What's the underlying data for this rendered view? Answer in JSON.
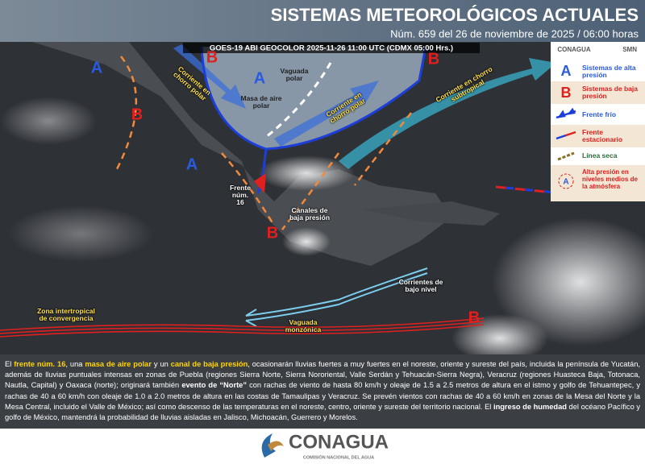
{
  "header": {
    "title": "SISTEMAS METEOROLÓGICOS ACTUALES",
    "subtitle": "Núm. 659 del 26 de noviembre de 2025 / 06:00 horas"
  },
  "map": {
    "caption": "GOES-19 ABI GEOCOLOR 2025-11-26 11:00 UTC (CDMX  05:00 Hrs.)",
    "labels": [
      "A",
      "B",
      "A",
      "Vaguada polar",
      "Masa de aire polar",
      "Corriente en chorro polar",
      "Corriente en chorro polar",
      "B",
      "Corriente en chorro subtropical",
      "B",
      "A",
      "Frente núm. 16",
      "Canales de baja presión",
      "B",
      "Corrientes de bajo nivel",
      "Zona intertropical de convergencia",
      "Vaguada monzónica",
      "B"
    ]
  },
  "legend": {
    "logos": [
      "CONAGUA",
      "SMN"
    ],
    "items": [
      "Sistemas de alta presión",
      "Sistemas de baja presión",
      "Frente frío",
      "Frente estacionario",
      "Línea seca",
      "Alta presión en niveles medios de la atmósfera"
    ]
  },
  "description": [
    "El ",
    "frente núm. 16",
    ", una ",
    "masa de aire polar",
    " y un ",
    "canal de baja presión",
    ", ocasionarán  lluvias fuertes a muy fuertes en el noreste, oriente y sureste del país, incluida la península de Yucatán, además de lluvias puntuales intensas en zonas de Puebla (regiones Sierra Norte, Sierra Nororiental, Valle Serdán y Tehuacán-Sierra Negra), Veracruz (regiones Huasteca Baja, Totonaca, Nautla, Capital) y Oaxaca (norte); originará también ",
    "evento de “Norte”",
    " con rachas de viento de hasta 80 km/h y oleaje de 1.5 a 2.5 metros de altura en el istmo y golfo de Tehuantepec, y rachas de 40 a 60 km/h con oleaje de 1.0 a 2.0 metros de altura en las costas de Tamaulipas y Veracruz. Se prevén vientos con rachas de 40 a 60 km/h en zonas de la Mesa del Norte y la Mesa Central, incluido el Valle de México; así como descenso de las temperaturas en el noreste, centro, oriente y sureste del territorio nacional. El ",
    "ingreso de humedad",
    " del océano Pacífico y golfo de México, mantendrá la probabilidad de lluvias aisladas en Jalisco, Michoacán, Guerrero y Morelos."
  ],
  "footer": {
    "logo": "CONAGUA",
    "subtitle": "COMISIÓN NACIONAL DEL AGUA"
  }
}
